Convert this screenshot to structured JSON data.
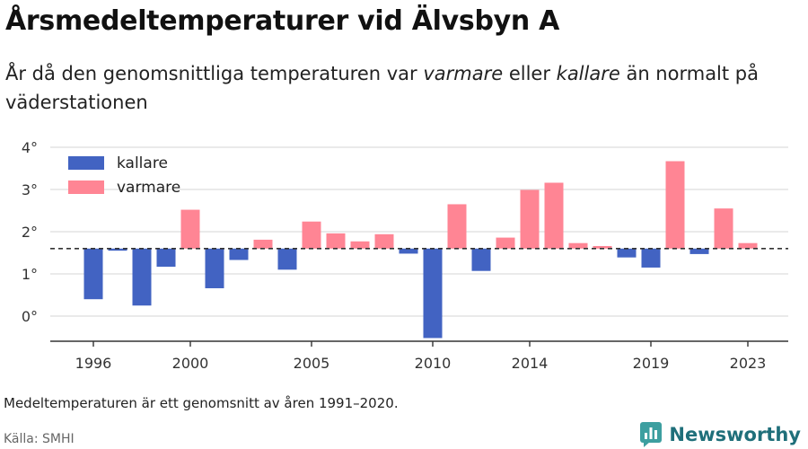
{
  "title": "Årsmedeltemperaturer vid Älvsbyn A",
  "subtitle": {
    "part1": "År då den genomsnittliga temperaturen var ",
    "warm_word": "varmare",
    "part2": " eller ",
    "cold_word": "kallare",
    "part3": " än normalt på väderstationen"
  },
  "note": "Medeltemperaturen är ett genomsnitt av åren 1991–2020.",
  "source": "Källa: SMHI",
  "brand": "Newsworthy",
  "colors": {
    "colder": "#4263c2",
    "warmer": "#ff8594",
    "grid": "#dddddd",
    "baseline": "#333333",
    "brand": "#1f6f7a"
  },
  "chart_data": {
    "type": "bar",
    "baseline": 1.6,
    "ylim": [
      -0.6,
      4.2
    ],
    "yticks": [
      0,
      1,
      2,
      3,
      4
    ],
    "ytick_labels": [
      "0°",
      "1°",
      "2°",
      "3°",
      "4°"
    ],
    "xticks": [
      1996,
      2000,
      2005,
      2010,
      2014,
      2019,
      2023
    ],
    "legend": [
      {
        "key": "colder",
        "label": "kallare"
      },
      {
        "key": "warmer",
        "label": "varmare"
      }
    ],
    "legend_position": "top-left",
    "grid": true,
    "years": [
      1996,
      1997,
      1998,
      1999,
      2000,
      2001,
      2002,
      2003,
      2004,
      2005,
      2006,
      2007,
      2008,
      2009,
      2010,
      2011,
      2012,
      2013,
      2014,
      2015,
      2016,
      2017,
      2018,
      2019,
      2020,
      2021,
      2022,
      2023
    ],
    "values": [
      0.4,
      1.55,
      0.25,
      1.17,
      2.52,
      0.66,
      1.33,
      1.81,
      1.1,
      2.24,
      1.96,
      1.77,
      1.94,
      1.48,
      -0.52,
      2.65,
      1.07,
      1.86,
      2.99,
      3.16,
      1.73,
      1.66,
      1.39,
      1.15,
      3.67,
      1.47,
      2.55,
      1.73
    ]
  }
}
